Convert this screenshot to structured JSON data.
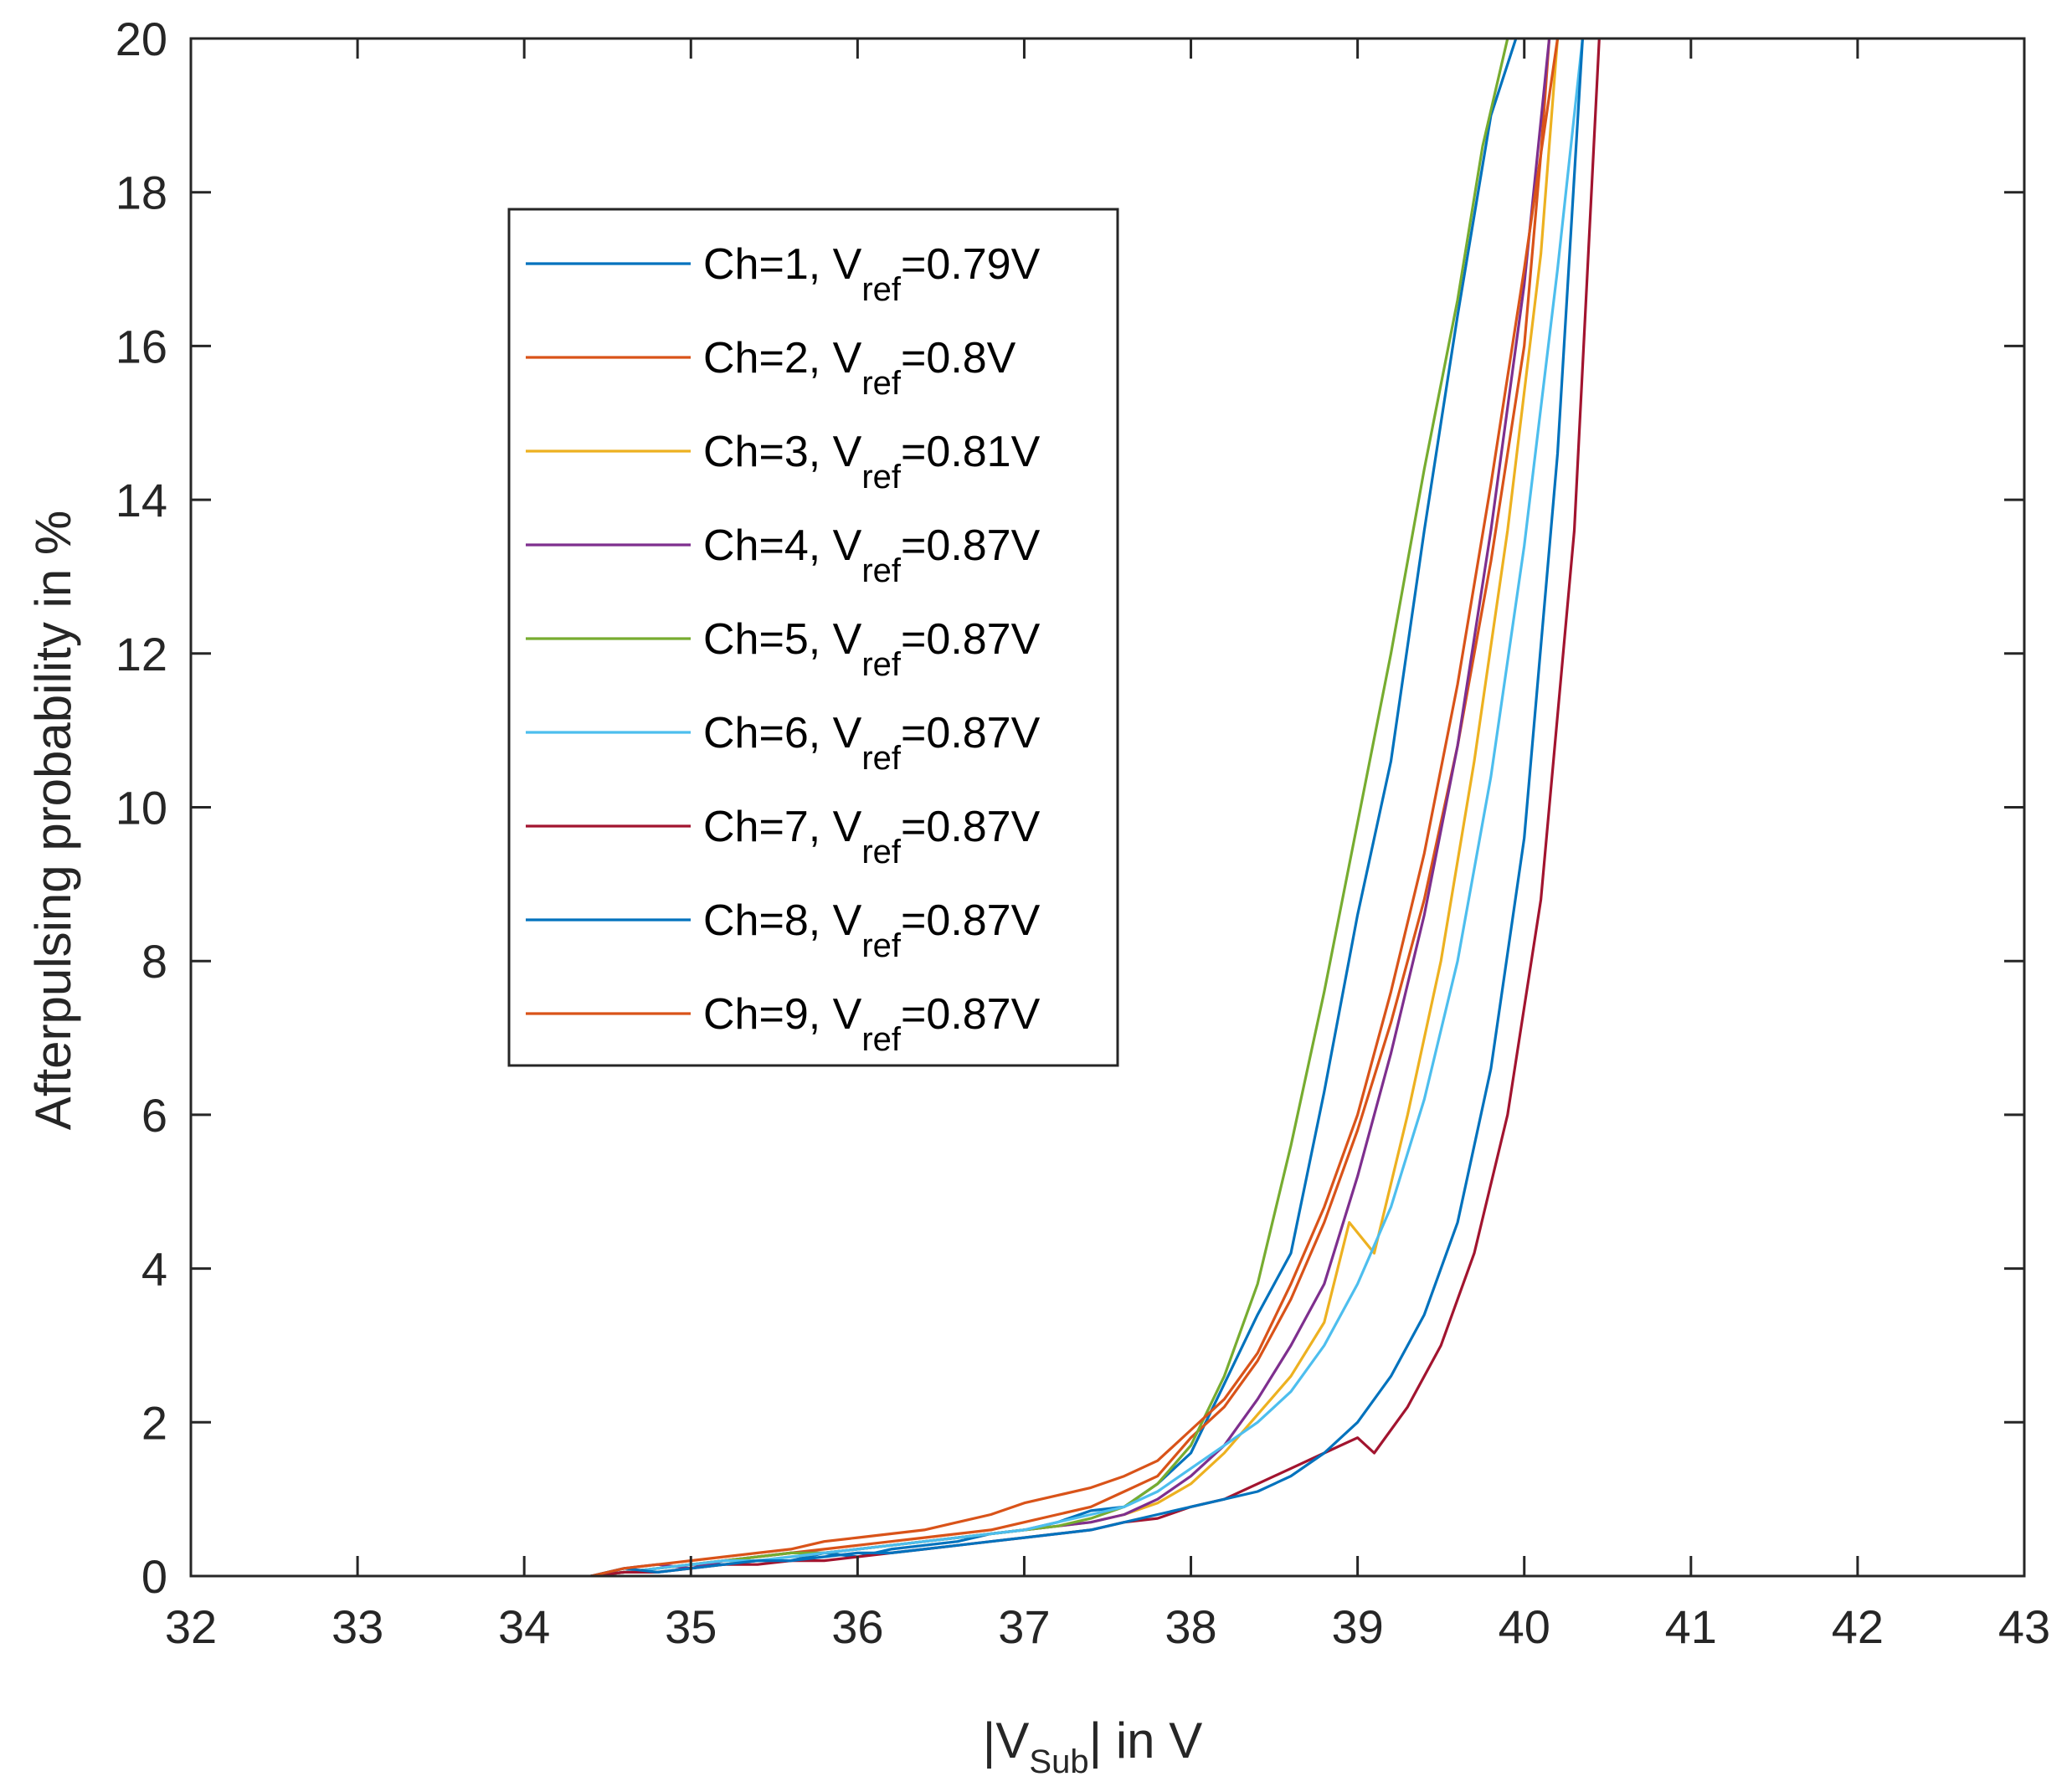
{
  "chart_data": {
    "type": "line",
    "xlabel": {
      "main": "|V",
      "sub": "Sub",
      "tail": "| in V"
    },
    "ylabel": "Afterpulsing probability in %",
    "xlim": [
      32,
      43
    ],
    "ylim": [
      0,
      20
    ],
    "xticks": [
      "32",
      "33",
      "34",
      "35",
      "36",
      "37",
      "38",
      "39",
      "40",
      "41",
      "42",
      "43"
    ],
    "yticks": [
      "0",
      "2",
      "4",
      "6",
      "8",
      "10",
      "12",
      "14",
      "16",
      "18",
      "20"
    ],
    "grid": false,
    "legend_position": "top-left",
    "series": [
      {
        "name": "Ch=1, V_ref=0.79V",
        "legend": {
          "pre": "Ch=1, V",
          "sub": "ref",
          "post": "=0.79V"
        },
        "color": "#0072BD",
        "x": [
          34.4,
          34.6,
          34.8,
          35.0,
          35.2,
          35.4,
          35.6,
          35.8,
          36.0,
          36.2,
          36.4,
          36.6,
          36.8,
          37.0,
          37.2,
          37.4,
          37.6,
          37.8,
          38.0,
          38.2,
          38.4,
          38.6,
          38.8,
          39.0,
          39.2,
          39.4,
          39.6,
          39.8,
          39.95
        ],
        "y": [
          0.0,
          0.05,
          0.1,
          0.15,
          0.15,
          0.2,
          0.2,
          0.3,
          0.25,
          0.35,
          0.4,
          0.45,
          0.55,
          0.6,
          0.7,
          0.85,
          0.9,
          1.2,
          1.6,
          2.5,
          3.4,
          4.2,
          6.3,
          8.6,
          10.6,
          13.6,
          16.4,
          19.0,
          20.0
        ]
      },
      {
        "name": "Ch=2, V_ref=0.8V",
        "legend": {
          "pre": "Ch=2, V",
          "sub": "ref",
          "post": "=0.8V"
        },
        "color": "#D95319",
        "x": [
          34.4,
          34.6,
          34.8,
          35.0,
          35.2,
          35.4,
          35.6,
          35.8,
          36.0,
          36.2,
          36.4,
          36.6,
          36.8,
          37.0,
          37.2,
          37.4,
          37.6,
          37.8,
          38.0,
          38.2,
          38.4,
          38.6,
          38.8,
          39.0,
          39.2,
          39.4,
          39.6,
          39.8,
          40.0,
          40.1,
          40.15
        ],
        "y": [
          0.0,
          0.05,
          0.1,
          0.15,
          0.2,
          0.25,
          0.3,
          0.35,
          0.4,
          0.45,
          0.5,
          0.55,
          0.6,
          0.7,
          0.8,
          0.9,
          1.1,
          1.3,
          1.8,
          2.2,
          2.8,
          3.6,
          4.6,
          5.8,
          7.2,
          8.8,
          10.8,
          13.2,
          16.0,
          18.5,
          20.0
        ]
      },
      {
        "name": "Ch=3, V_ref=0.81V",
        "legend": {
          "pre": "Ch=3, V",
          "sub": "ref",
          "post": "=0.81V"
        },
        "color": "#EDB120",
        "x": [
          34.4,
          34.6,
          34.8,
          35.0,
          35.2,
          35.4,
          35.6,
          35.8,
          36.0,
          36.2,
          36.4,
          36.6,
          36.8,
          37.0,
          37.2,
          37.4,
          37.6,
          37.8,
          38.0,
          38.2,
          38.4,
          38.6,
          38.8,
          38.95,
          39.1,
          39.3,
          39.5,
          39.7,
          39.9,
          40.1,
          40.2
        ],
        "y": [
          0.0,
          0.05,
          0.1,
          0.15,
          0.2,
          0.2,
          0.25,
          0.3,
          0.35,
          0.4,
          0.45,
          0.5,
          0.55,
          0.6,
          0.65,
          0.7,
          0.8,
          0.95,
          1.2,
          1.6,
          2.1,
          2.6,
          3.3,
          4.6,
          4.2,
          6.0,
          8.0,
          10.6,
          13.6,
          17.2,
          20.0
        ]
      },
      {
        "name": "Ch=4, V_ref=0.87V",
        "legend": {
          "pre": "Ch=4, V",
          "sub": "ref",
          "post": "=0.87V"
        },
        "color": "#7E2F8E",
        "x": [
          34.4,
          34.6,
          34.8,
          35.0,
          35.2,
          35.4,
          35.6,
          35.8,
          36.0,
          36.2,
          36.4,
          36.6,
          36.8,
          37.0,
          37.2,
          37.4,
          37.6,
          37.8,
          38.0,
          38.2,
          38.4,
          38.6,
          38.8,
          39.0,
          39.2,
          39.4,
          39.6,
          39.8,
          40.0,
          40.15
        ],
        "y": [
          0.0,
          0.1,
          0.15,
          0.1,
          0.2,
          0.25,
          0.3,
          0.3,
          0.35,
          0.4,
          0.45,
          0.5,
          0.55,
          0.6,
          0.65,
          0.7,
          0.8,
          1.0,
          1.3,
          1.7,
          2.3,
          3.0,
          3.8,
          5.2,
          6.8,
          8.6,
          10.8,
          13.6,
          16.8,
          20.0
        ]
      },
      {
        "name": "Ch=5, V_ref=0.87V",
        "legend": {
          "pre": "Ch=5, V",
          "sub": "ref",
          "post": "=0.87V"
        },
        "color": "#77AC30",
        "x": [
          34.4,
          34.6,
          34.8,
          35.0,
          35.2,
          35.4,
          35.6,
          35.8,
          36.0,
          36.2,
          36.4,
          36.6,
          36.8,
          37.0,
          37.2,
          37.4,
          37.6,
          37.8,
          38.0,
          38.2,
          38.4,
          38.6,
          38.8,
          39.0,
          39.2,
          39.4,
          39.6,
          39.75,
          39.9
        ],
        "y": [
          0.0,
          0.05,
          0.1,
          0.15,
          0.2,
          0.25,
          0.3,
          0.3,
          0.35,
          0.4,
          0.45,
          0.5,
          0.55,
          0.6,
          0.65,
          0.75,
          0.9,
          1.2,
          1.7,
          2.6,
          3.8,
          5.6,
          7.6,
          9.8,
          12.0,
          14.4,
          16.6,
          18.6,
          20.0
        ]
      },
      {
        "name": "Ch=6, V_ref=0.87V",
        "legend": {
          "pre": "Ch=6, V",
          "sub": "ref",
          "post": "=0.87V"
        },
        "color": "#4DBEEE",
        "x": [
          34.4,
          34.6,
          34.8,
          35.0,
          35.2,
          35.4,
          35.6,
          35.8,
          36.0,
          36.2,
          36.4,
          36.6,
          36.8,
          37.0,
          37.2,
          37.4,
          37.6,
          37.8,
          38.0,
          38.2,
          38.4,
          38.6,
          38.8,
          39.0,
          39.2,
          39.4,
          39.6,
          39.8,
          40.0,
          40.2,
          40.35
        ],
        "y": [
          0.0,
          0.05,
          0.1,
          0.15,
          0.2,
          0.2,
          0.25,
          0.3,
          0.35,
          0.4,
          0.45,
          0.5,
          0.55,
          0.6,
          0.7,
          0.8,
          0.9,
          1.1,
          1.4,
          1.7,
          2.0,
          2.4,
          3.0,
          3.8,
          4.8,
          6.2,
          8.0,
          10.4,
          13.4,
          17.0,
          20.0
        ]
      },
      {
        "name": "Ch=7, V_ref=0.87V",
        "legend": {
          "pre": "Ch=7, V",
          "sub": "ref",
          "post": "=0.87V"
        },
        "color": "#A2142F",
        "x": [
          34.4,
          34.6,
          34.8,
          35.0,
          35.2,
          35.4,
          35.6,
          35.8,
          36.0,
          36.2,
          36.4,
          36.6,
          36.8,
          37.0,
          37.2,
          37.4,
          37.6,
          37.8,
          38.0,
          38.2,
          38.4,
          38.6,
          38.8,
          39.0,
          39.1,
          39.3,
          39.5,
          39.7,
          39.9,
          40.1,
          40.3,
          40.45
        ],
        "y": [
          0.0,
          0.05,
          0.05,
          0.1,
          0.15,
          0.15,
          0.2,
          0.2,
          0.25,
          0.3,
          0.35,
          0.4,
          0.45,
          0.5,
          0.55,
          0.6,
          0.7,
          0.75,
          0.9,
          1.0,
          1.2,
          1.4,
          1.6,
          1.8,
          1.6,
          2.2,
          3.0,
          4.2,
          6.0,
          8.8,
          13.6,
          20.0
        ]
      },
      {
        "name": "Ch=8, V_ref=0.87V",
        "legend": {
          "pre": "Ch=8, V",
          "sub": "ref",
          "post": "=0.87V"
        },
        "color": "#0072BD",
        "x": [
          34.4,
          34.6,
          34.8,
          35.0,
          35.2,
          35.4,
          35.6,
          35.8,
          36.0,
          36.2,
          36.4,
          36.6,
          36.8,
          37.0,
          37.2,
          37.4,
          37.6,
          37.8,
          38.0,
          38.2,
          38.4,
          38.6,
          38.8,
          39.0,
          39.2,
          39.4,
          39.6,
          39.8,
          40.0,
          40.2,
          40.35
        ],
        "y": [
          0.0,
          0.1,
          0.05,
          0.1,
          0.15,
          0.2,
          0.2,
          0.25,
          0.3,
          0.3,
          0.35,
          0.4,
          0.45,
          0.5,
          0.55,
          0.6,
          0.7,
          0.8,
          0.9,
          1.0,
          1.1,
          1.3,
          1.6,
          2.0,
          2.6,
          3.4,
          4.6,
          6.6,
          9.6,
          14.6,
          20.0
        ]
      },
      {
        "name": "Ch=9, V_ref=0.87V",
        "legend": {
          "pre": "Ch=9, V",
          "sub": "ref",
          "post": "=0.87V"
        },
        "color": "#D95319",
        "x": [
          34.4,
          34.6,
          34.8,
          35.0,
          35.2,
          35.4,
          35.6,
          35.8,
          36.0,
          36.2,
          36.4,
          36.6,
          36.8,
          37.0,
          37.2,
          37.4,
          37.6,
          37.8,
          38.0,
          38.2,
          38.4,
          38.6,
          38.8,
          39.0,
          39.2,
          39.4,
          39.6,
          39.8,
          40.0,
          40.2
        ],
        "y": [
          0.0,
          0.1,
          0.15,
          0.2,
          0.25,
          0.3,
          0.35,
          0.45,
          0.5,
          0.55,
          0.6,
          0.7,
          0.8,
          0.95,
          1.05,
          1.15,
          1.3,
          1.5,
          1.9,
          2.3,
          2.9,
          3.8,
          4.8,
          6.0,
          7.6,
          9.4,
          11.6,
          14.2,
          17.0,
          20.0
        ]
      }
    ]
  }
}
